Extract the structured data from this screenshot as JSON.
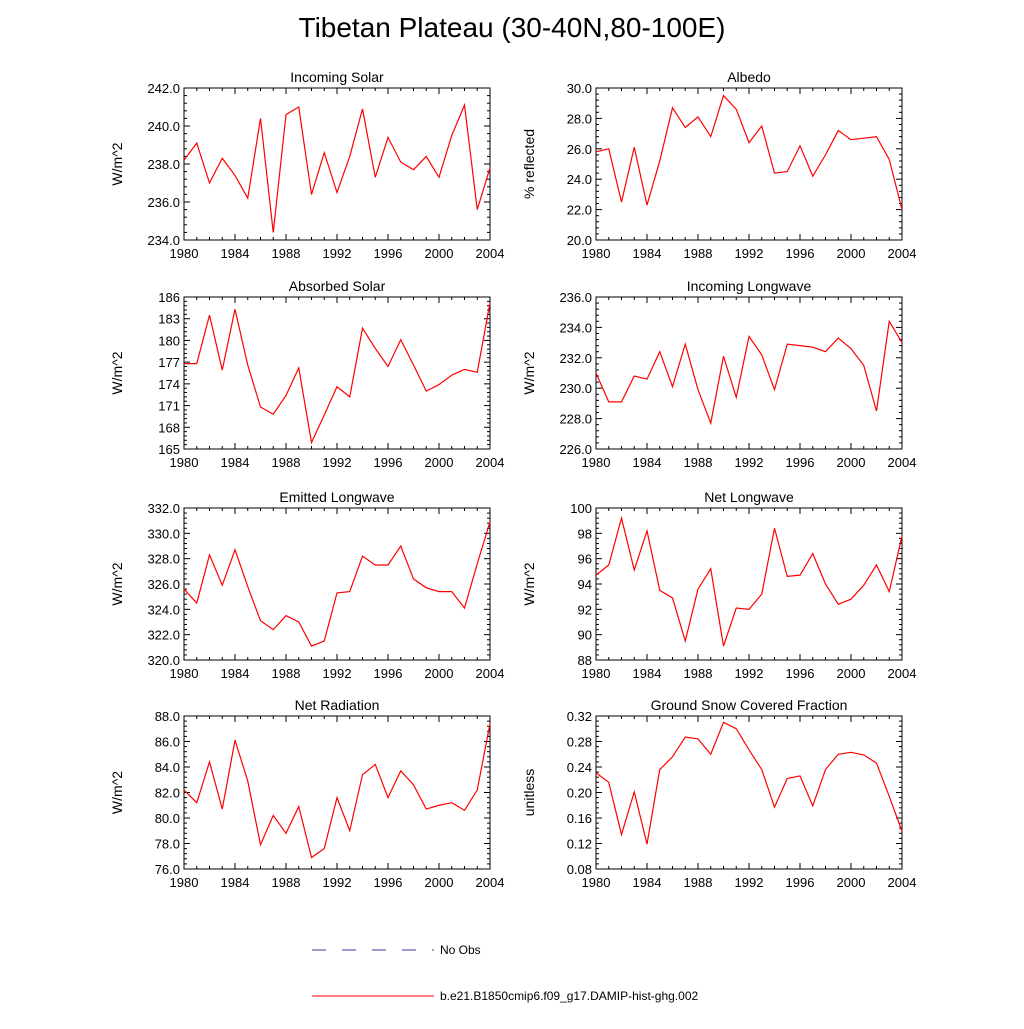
{
  "figure": {
    "title": "Tibetan Plateau (30-40N,80-100E)",
    "line_color": "#ff0000",
    "obs_color": "#3a3aa8"
  },
  "legend": {
    "obs_label": "No Obs",
    "model_label": "b.e21.B1850cmip6.f09_g17.DAMIP-hist-ghg.002"
  },
  "chart_data": [
    {
      "type": "line",
      "title": "Incoming Solar",
      "ylabel": "W/m^2",
      "xlim": [
        1980,
        2004
      ],
      "ylim": [
        234.0,
        242.0
      ],
      "xticks": [
        "1980",
        "1984",
        "1988",
        "1992",
        "1996",
        "2000",
        "2004"
      ],
      "yticks": [
        "234.0",
        "236.0",
        "238.0",
        "240.0",
        "242.0"
      ],
      "x": [
        1980,
        1981,
        1982,
        1983,
        1984,
        1985,
        1986,
        1987,
        1988,
        1989,
        1990,
        1991,
        1992,
        1993,
        1994,
        1995,
        1996,
        1997,
        1998,
        1999,
        2000,
        2001,
        2002,
        2003,
        2004
      ],
      "series": [
        {
          "values": [
            238.2,
            239.1,
            237.0,
            238.3,
            237.4,
            236.2,
            240.4,
            234.4,
            240.6,
            241.0,
            236.4,
            238.6,
            236.5,
            238.4,
            240.9,
            237.3,
            239.4,
            238.1,
            237.7,
            238.4,
            237.3,
            239.5,
            241.1,
            235.6,
            237.8
          ]
        }
      ]
    },
    {
      "type": "line",
      "title": "Albedo",
      "ylabel": "% reflected",
      "xlim": [
        1980,
        2004
      ],
      "ylim": [
        20.0,
        30.0
      ],
      "xticks": [
        "1980",
        "1984",
        "1988",
        "1992",
        "1996",
        "2000",
        "2004"
      ],
      "yticks": [
        "20.0",
        "22.0",
        "24.0",
        "26.0",
        "28.0",
        "30.0"
      ],
      "x": [
        1980,
        1981,
        1982,
        1983,
        1984,
        1985,
        1986,
        1987,
        1988,
        1989,
        1990,
        1991,
        1992,
        1993,
        1994,
        1995,
        1996,
        1997,
        1998,
        1999,
        2000,
        2001,
        2002,
        2003,
        2004
      ],
      "series": [
        {
          "values": [
            25.8,
            26.0,
            22.5,
            26.1,
            22.3,
            25.2,
            28.7,
            27.4,
            28.1,
            26.8,
            29.5,
            28.6,
            26.4,
            27.5,
            24.4,
            24.5,
            26.2,
            24.2,
            25.6,
            27.2,
            26.6,
            26.7,
            26.8,
            25.3,
            22.0
          ]
        }
      ]
    },
    {
      "type": "line",
      "title": "Absorbed Solar",
      "ylabel": "W/m^2",
      "xlim": [
        1980,
        2004
      ],
      "ylim": [
        165,
        186
      ],
      "xticks": [
        "1980",
        "1984",
        "1988",
        "1992",
        "1996",
        "2000",
        "2004"
      ],
      "yticks": [
        "165",
        "168",
        "171",
        "174",
        "177",
        "180",
        "183",
        "186"
      ],
      "x": [
        1980,
        1981,
        1982,
        1983,
        1984,
        1985,
        1986,
        1987,
        1988,
        1989,
        1990,
        1991,
        1992,
        1993,
        1994,
        1995,
        1996,
        1997,
        1998,
        1999,
        2000,
        2001,
        2002,
        2003,
        2004
      ],
      "series": [
        {
          "values": [
            176.8,
            176.8,
            183.5,
            175.9,
            184.3,
            176.6,
            170.8,
            169.8,
            172.4,
            176.2,
            165.9,
            169.7,
            173.6,
            172.2,
            181.7,
            178.9,
            176.4,
            180.1,
            176.6,
            173.0,
            173.9,
            175.2,
            176.0,
            175.6,
            185.2
          ]
        }
      ]
    },
    {
      "type": "line",
      "title": "Incoming Longwave",
      "ylabel": "W/m^2",
      "xlim": [
        1980,
        2004
      ],
      "ylim": [
        226.0,
        236.0
      ],
      "xticks": [
        "1980",
        "1984",
        "1988",
        "1992",
        "1996",
        "2000",
        "2004"
      ],
      "yticks": [
        "226.0",
        "228.0",
        "230.0",
        "232.0",
        "234.0",
        "236.0"
      ],
      "x": [
        1980,
        1981,
        1982,
        1983,
        1984,
        1985,
        1986,
        1987,
        1988,
        1989,
        1990,
        1991,
        1992,
        1993,
        1994,
        1995,
        1996,
        1997,
        1998,
        1999,
        2000,
        2001,
        2002,
        2003,
        2004
      ],
      "series": [
        {
          "values": [
            231.0,
            229.1,
            229.1,
            230.8,
            230.6,
            232.4,
            230.1,
            232.9,
            229.9,
            227.7,
            232.1,
            229.4,
            233.4,
            232.2,
            229.9,
            232.9,
            232.8,
            232.7,
            232.4,
            233.3,
            232.6,
            231.5,
            228.5,
            234.4,
            233.0
          ]
        }
      ]
    },
    {
      "type": "line",
      "title": "Emitted Longwave",
      "ylabel": "W/m^2",
      "xlim": [
        1980,
        2004
      ],
      "ylim": [
        320.0,
        332.0
      ],
      "xticks": [
        "1980",
        "1984",
        "1988",
        "1992",
        "1996",
        "2000",
        "2004"
      ],
      "yticks": [
        "320.0",
        "322.0",
        "324.0",
        "326.0",
        "328.0",
        "330.0",
        "332.0"
      ],
      "x": [
        1980,
        1981,
        1982,
        1983,
        1984,
        1985,
        1986,
        1987,
        1988,
        1989,
        1990,
        1991,
        1992,
        1993,
        1994,
        1995,
        1996,
        1997,
        1998,
        1999,
        2000,
        2001,
        2002,
        2003,
        2004
      ],
      "series": [
        {
          "values": [
            325.6,
            324.5,
            328.3,
            325.9,
            328.7,
            325.8,
            323.1,
            322.4,
            323.5,
            323.0,
            321.1,
            321.5,
            325.3,
            325.4,
            328.2,
            327.5,
            327.5,
            329.0,
            326.4,
            325.7,
            325.4,
            325.4,
            324.1,
            327.6,
            330.9
          ]
        }
      ]
    },
    {
      "type": "line",
      "title": "Net Longwave",
      "ylabel": "W/m^2",
      "xlim": [
        1980,
        2004
      ],
      "ylim": [
        88,
        100
      ],
      "xticks": [
        "1980",
        "1984",
        "1988",
        "1992",
        "1996",
        "2000",
        "2004"
      ],
      "yticks": [
        "88",
        "90",
        "92",
        "94",
        "96",
        "98",
        "100"
      ],
      "x": [
        1980,
        1981,
        1982,
        1983,
        1984,
        1985,
        1986,
        1987,
        1988,
        1989,
        1990,
        1991,
        1992,
        1993,
        1994,
        1995,
        1996,
        1997,
        1998,
        1999,
        2000,
        2001,
        2002,
        2003,
        2004
      ],
      "series": [
        {
          "values": [
            94.7,
            95.5,
            99.2,
            95.1,
            98.2,
            93.5,
            92.9,
            89.5,
            93.6,
            95.2,
            89.1,
            92.1,
            92.0,
            93.2,
            98.4,
            94.6,
            94.7,
            96.4,
            94.0,
            92.4,
            92.8,
            93.9,
            95.5,
            93.4,
            97.8
          ]
        }
      ]
    },
    {
      "type": "line",
      "title": "Net Radiation",
      "ylabel": "W/m^2",
      "xlim": [
        1980,
        2004
      ],
      "ylim": [
        76.0,
        88.0
      ],
      "xticks": [
        "1980",
        "1984",
        "1988",
        "1992",
        "1996",
        "2000",
        "2004"
      ],
      "yticks": [
        "76.0",
        "78.0",
        "80.0",
        "82.0",
        "84.0",
        "86.0",
        "88.0"
      ],
      "x": [
        1980,
        1981,
        1982,
        1983,
        1984,
        1985,
        1986,
        1987,
        1988,
        1989,
        1990,
        1991,
        1992,
        1993,
        1994,
        1995,
        1996,
        1997,
        1998,
        1999,
        2000,
        2001,
        2002,
        2003,
        2004
      ],
      "series": [
        {
          "values": [
            82.2,
            81.2,
            84.4,
            80.7,
            86.1,
            82.9,
            77.9,
            80.2,
            78.8,
            80.9,
            76.9,
            77.6,
            81.6,
            79.0,
            83.4,
            84.2,
            81.6,
            83.7,
            82.6,
            80.7,
            81.0,
            81.2,
            80.6,
            82.2,
            87.4
          ]
        }
      ]
    },
    {
      "type": "line",
      "title": "Ground Snow Covered Fraction",
      "ylabel": "unitless",
      "xlim": [
        1980,
        2004
      ],
      "ylim": [
        0.08,
        0.32
      ],
      "xticks": [
        "1980",
        "1984",
        "1988",
        "1992",
        "1996",
        "2000",
        "2004"
      ],
      "yticks": [
        "0.08",
        "0.12",
        "0.16",
        "0.20",
        "0.24",
        "0.28",
        "0.32"
      ],
      "x": [
        1980,
        1981,
        1982,
        1983,
        1984,
        1985,
        1986,
        1987,
        1988,
        1989,
        1990,
        1991,
        1992,
        1993,
        1994,
        1995,
        1996,
        1997,
        1998,
        1999,
        2000,
        2001,
        2002,
        2003,
        2004
      ],
      "series": [
        {
          "values": [
            0.231,
            0.216,
            0.134,
            0.201,
            0.119,
            0.236,
            0.256,
            0.287,
            0.284,
            0.26,
            0.31,
            0.3,
            0.267,
            0.236,
            0.177,
            0.222,
            0.226,
            0.179,
            0.236,
            0.26,
            0.263,
            0.259,
            0.246,
            0.194,
            0.139
          ]
        }
      ]
    }
  ]
}
